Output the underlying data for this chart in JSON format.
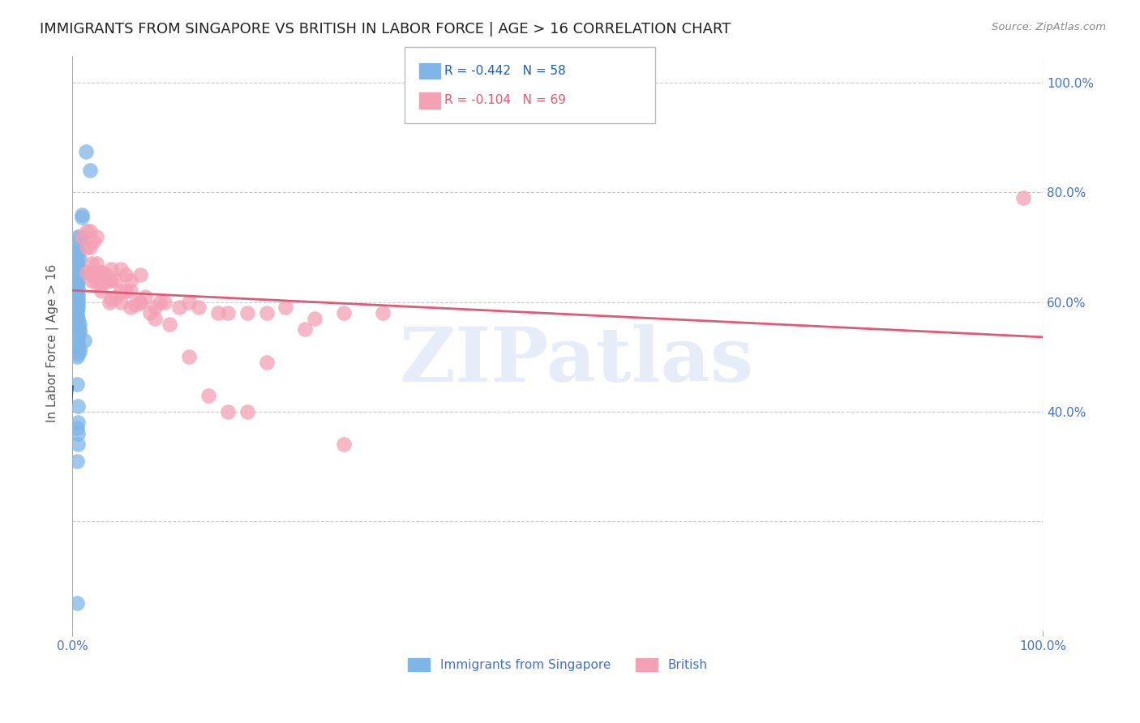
{
  "title": "IMMIGRANTS FROM SINGAPORE VS BRITISH IN LABOR FORCE | AGE > 16 CORRELATION CHART",
  "source": "Source: ZipAtlas.com",
  "ylabel": "In Labor Force | Age > 16",
  "singapore_color": "#7eb6e8",
  "british_color": "#f4a0b5",
  "singapore_line_color": "#1a5fb4",
  "british_line_color": "#e05a78",
  "legend_label_bottom_1": "Immigrants from Singapore",
  "legend_label_bottom_2": "British",
  "watermark": "ZIPatlas",
  "singapore_x": [
    0.014,
    0.018,
    0.01,
    0.01,
    0.006,
    0.008,
    0.008,
    0.004,
    0.005,
    0.006,
    0.005,
    0.005,
    0.007,
    0.005,
    0.005,
    0.006,
    0.005,
    0.005,
    0.005,
    0.006,
    0.005,
    0.005,
    0.006,
    0.005,
    0.006,
    0.005,
    0.006,
    0.005,
    0.006,
    0.006,
    0.005,
    0.006,
    0.005,
    0.005,
    0.005,
    0.006,
    0.006,
    0.007,
    0.006,
    0.007,
    0.007,
    0.006,
    0.006,
    0.012,
    0.006,
    0.005,
    0.007,
    0.007,
    0.006,
    0.005,
    0.005,
    0.006,
    0.006,
    0.005,
    0.006,
    0.006,
    0.005,
    0.005
  ],
  "singapore_y": [
    0.875,
    0.84,
    0.755,
    0.76,
    0.72,
    0.72,
    0.715,
    0.7,
    0.695,
    0.695,
    0.69,
    0.685,
    0.68,
    0.675,
    0.67,
    0.67,
    0.665,
    0.66,
    0.655,
    0.65,
    0.645,
    0.64,
    0.635,
    0.63,
    0.625,
    0.62,
    0.615,
    0.61,
    0.605,
    0.6,
    0.595,
    0.59,
    0.585,
    0.58,
    0.575,
    0.57,
    0.565,
    0.56,
    0.555,
    0.55,
    0.545,
    0.54,
    0.535,
    0.53,
    0.525,
    0.52,
    0.515,
    0.51,
    0.505,
    0.5,
    0.45,
    0.41,
    0.38,
    0.37,
    0.36,
    0.34,
    0.31,
    0.05
  ],
  "british_x": [
    0.02,
    0.015,
    0.025,
    0.02,
    0.018,
    0.03,
    0.022,
    0.028,
    0.035,
    0.018,
    0.025,
    0.04,
    0.03,
    0.05,
    0.028,
    0.035,
    0.022,
    0.038,
    0.045,
    0.055,
    0.06,
    0.07,
    0.038,
    0.045,
    0.055,
    0.065,
    0.075,
    0.085,
    0.095,
    0.11,
    0.12,
    0.13,
    0.15,
    0.16,
    0.18,
    0.2,
    0.22,
    0.25,
    0.28,
    0.32,
    0.015,
    0.02,
    0.025,
    0.03,
    0.04,
    0.05,
    0.06,
    0.07,
    0.08,
    0.09,
    0.01,
    0.015,
    0.02,
    0.025,
    0.03,
    0.04,
    0.05,
    0.06,
    0.07,
    0.085,
    0.1,
    0.12,
    0.14,
    0.16,
    0.98,
    0.18,
    0.2,
    0.24,
    0.28
  ],
  "british_y": [
    0.655,
    0.73,
    0.72,
    0.65,
    0.7,
    0.655,
    0.71,
    0.65,
    0.65,
    0.73,
    0.65,
    0.66,
    0.635,
    0.66,
    0.65,
    0.64,
    0.65,
    0.64,
    0.64,
    0.65,
    0.64,
    0.65,
    0.6,
    0.61,
    0.62,
    0.595,
    0.61,
    0.59,
    0.6,
    0.59,
    0.6,
    0.59,
    0.58,
    0.58,
    0.58,
    0.58,
    0.59,
    0.57,
    0.58,
    0.58,
    0.655,
    0.64,
    0.635,
    0.62,
    0.605,
    0.6,
    0.59,
    0.6,
    0.58,
    0.6,
    0.72,
    0.7,
    0.67,
    0.67,
    0.655,
    0.64,
    0.62,
    0.62,
    0.6,
    0.57,
    0.56,
    0.5,
    0.43,
    0.4,
    0.79,
    0.4,
    0.49,
    0.55,
    0.34
  ],
  "xlim": [
    0.0,
    1.0
  ],
  "ylim": [
    0.0,
    1.05
  ],
  "background_color": "#ffffff",
  "grid_color": "#cccccc",
  "title_fontsize": 13,
  "axis_label_fontsize": 11,
  "tick_label_fontsize": 11,
  "label_color": "#4472c4",
  "title_color": "#222222"
}
